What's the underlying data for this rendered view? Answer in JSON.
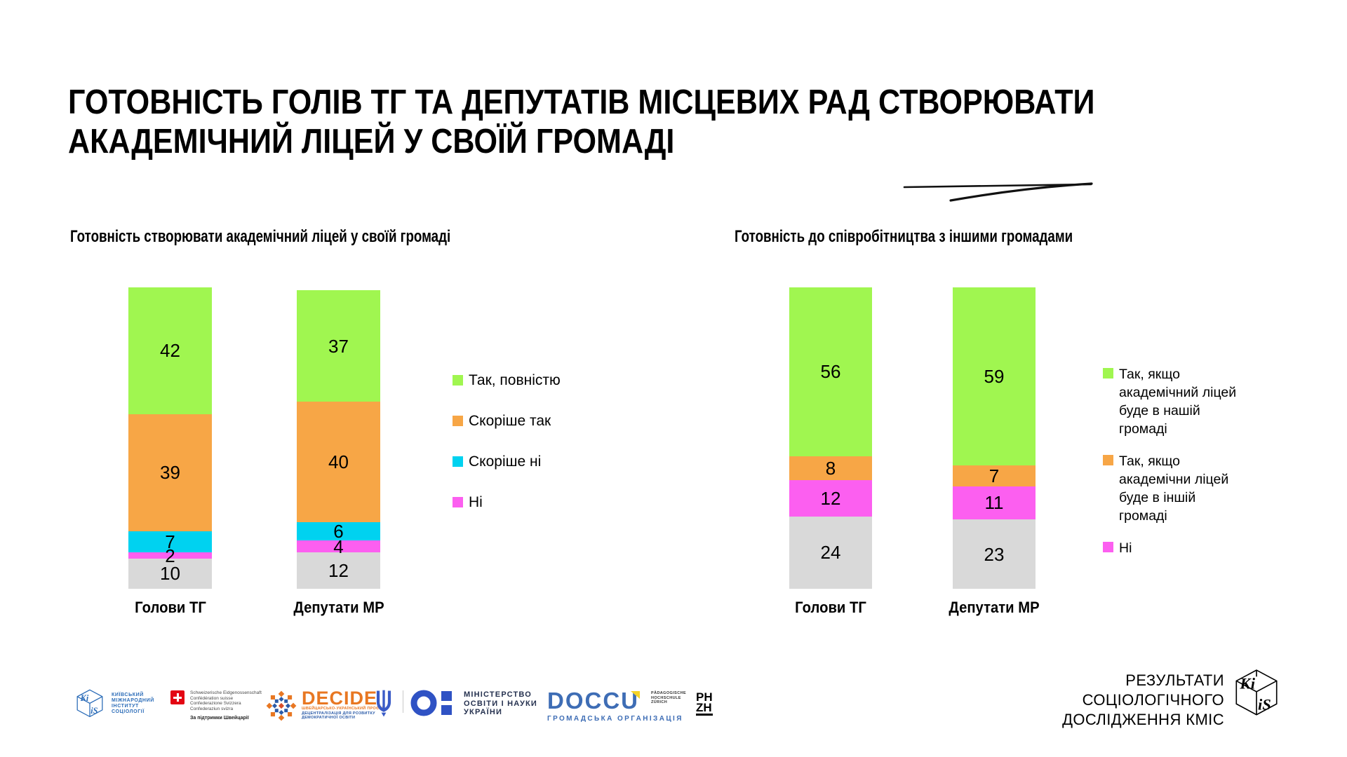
{
  "title": {
    "line1": "ГОТОВНІСТЬ ГОЛІВ ТГ ТА ДЕПУТАТІВ МІСЦЕВИХ РАД СТВОРЮВАТИ",
    "line2": "АКАДЕМІЧНИЙ ЛІЦЕЙ У СВОЇЙ ГРОМАДІ"
  },
  "colors": {
    "green": "#A0F650",
    "orange": "#F7A646",
    "cyan": "#00D2F0",
    "magenta": "#FC5FF0",
    "gray": "#D9D9D9",
    "doccu_blue": "#3E6DB5",
    "decide_orange": "#E87722",
    "swiss_red": "#E30613",
    "kiis_blue": "#2B6CB8",
    "ministry_blue": "#2F52C4"
  },
  "chart_data": [
    {
      "type": "bar",
      "subtype": "stacked-vertical",
      "title": "Готовність створювати академічний ліцей у своїй громаді",
      "categories": [
        "Голови ТГ",
        "Депутати МР"
      ],
      "series": [
        {
          "name": "Так, повністю",
          "color": "#A0F650",
          "in_legend": true,
          "values": [
            42,
            37
          ]
        },
        {
          "name": "Скоріше так",
          "color": "#F7A646",
          "in_legend": true,
          "values": [
            39,
            40
          ]
        },
        {
          "name": "Скоріше ні",
          "color": "#00D2F0",
          "in_legend": true,
          "values": [
            7,
            6
          ]
        },
        {
          "name": "Ні",
          "color": "#FC5FF0",
          "in_legend": true,
          "values": [
            2,
            4
          ]
        },
        {
          "name": "",
          "color": "#D9D9D9",
          "in_legend": false,
          "values": [
            10,
            12
          ]
        }
      ],
      "ylim": [
        0,
        100
      ],
      "grid": false,
      "legend_position": "right",
      "value_labels": true
    },
    {
      "type": "bar",
      "subtype": "stacked-vertical",
      "title": "Готовність до співробітництва з іншими громадами",
      "categories": [
        "Голови ТГ",
        "Депутати МР"
      ],
      "series": [
        {
          "name": "Так, якщо академічний ліцей буде в нашій громаді",
          "color": "#A0F650",
          "in_legend": true,
          "values": [
            56,
            59
          ]
        },
        {
          "name": "Так, якщо академічни ліцей буде в іншій громаді",
          "color": "#F7A646",
          "in_legend": true,
          "values": [
            8,
            7
          ]
        },
        {
          "name": "Ні",
          "color": "#FC5FF0",
          "in_legend": true,
          "values": [
            12,
            11
          ]
        },
        {
          "name": "",
          "color": "#D9D9D9",
          "in_legend": false,
          "values": [
            24,
            23
          ]
        }
      ],
      "ylim": [
        0,
        100
      ],
      "grid": false,
      "legend_position": "right",
      "value_labels": true
    }
  ],
  "footer": {
    "kiis": {
      "abbr_top": "Кі",
      "abbr_bottom": "іS",
      "lines": [
        "КИЇВСЬКИЙ",
        "МІЖНАРОДНИЙ",
        "ІНСТИТУТ",
        "СОЦІОЛОГІЇ"
      ]
    },
    "swiss": {
      "lines": [
        "Schweizerische Eidgenossenschaft",
        "Confédération suisse",
        "Confederazione Svizzera",
        "Confederaziun svizra"
      ],
      "caption": "За підтримки Швейцарії"
    },
    "decide": {
      "name": "DECIDE",
      "captions": [
        "ШВЕЙЦАРСЬКО-УКРАЇНСЬКИЙ ПРОЄКТ",
        "ДЕЦЕНТРАЛІЗАЦІЯ ДЛЯ РОЗВИТКУ",
        "ДЕМОКРАТИЧНОЇ ОСВІТИ"
      ]
    },
    "ministry": {
      "lines": [
        "МІНІСТЕРСТВО",
        "ОСВІТИ І НАУКИ",
        "УКРАЇНИ"
      ]
    },
    "doccu": {
      "name": "DOCCU",
      "caption": "ГРОМАДСЬКА ОРГАНІЗАЦІЯ"
    },
    "phzh": {
      "lines": [
        "PÄDAGOGISCHE",
        "HOCHSCHULE",
        "ZÜRICH"
      ],
      "initials_top": "PH",
      "initials_bottom": "ZH"
    },
    "results": {
      "lines": [
        "РЕЗУЛЬТАТИ",
        "СОЦІОЛОГІЧНОГО",
        "ДОСЛІДЖЕННЯ КМІС"
      ]
    }
  }
}
